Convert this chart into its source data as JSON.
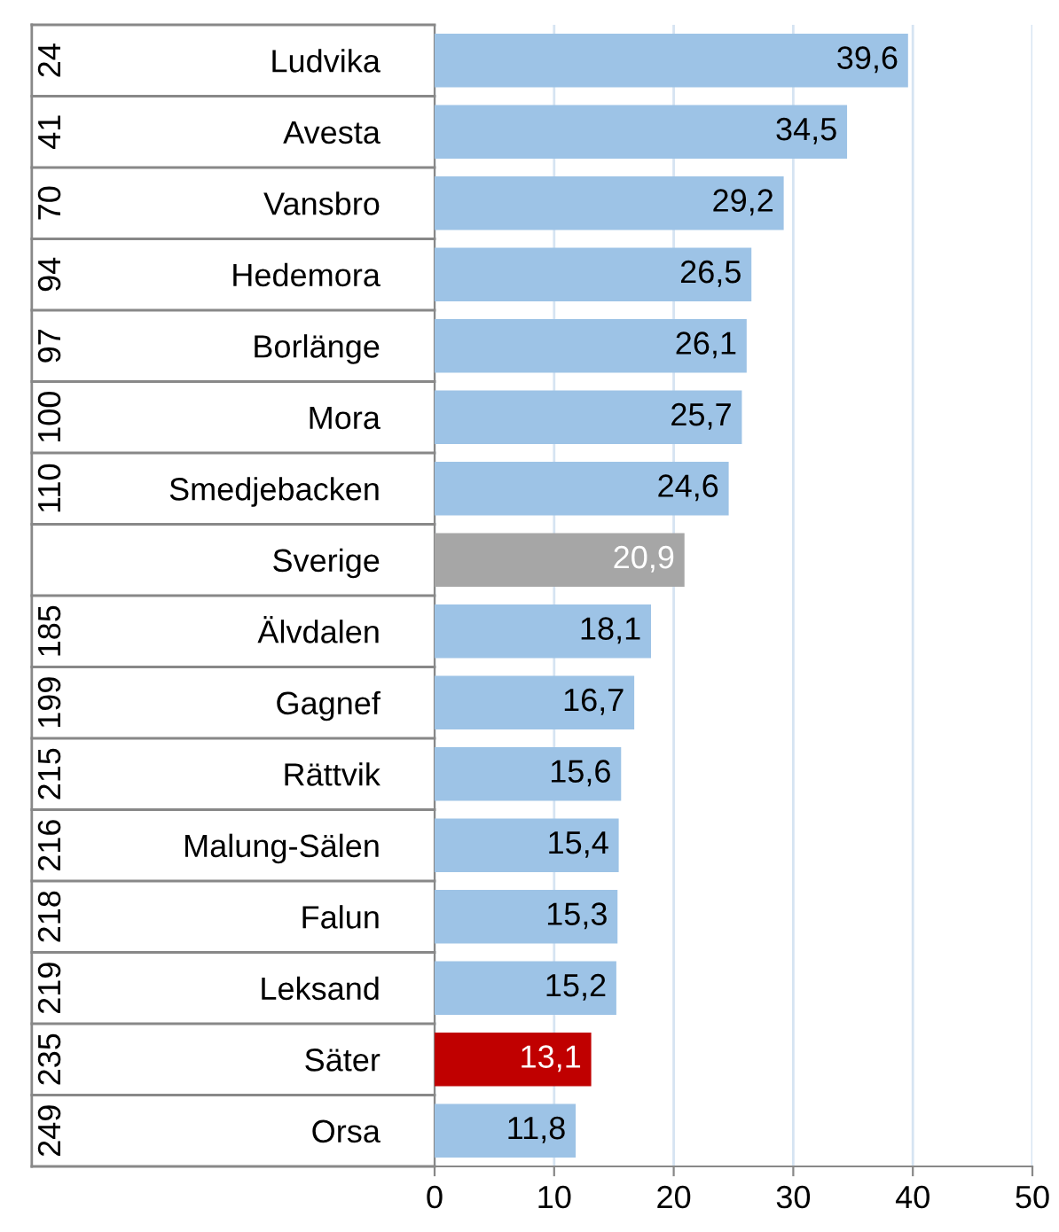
{
  "chart_data": {
    "type": "bar",
    "orientation": "horizontal",
    "categories": [
      "Ludvika",
      "Avesta",
      "Vansbro",
      "Hedemora",
      "Borlänge",
      "Mora",
      "Smedjebacken",
      "Sverige",
      "Älvdalen",
      "Gagnef",
      "Rättvik",
      "Malung-Sälen",
      "Falun",
      "Leksand",
      "Säter",
      "Orsa"
    ],
    "values": [
      39.6,
      34.5,
      29.2,
      26.5,
      26.1,
      25.7,
      24.6,
      20.9,
      18.1,
      16.7,
      15.6,
      15.4,
      15.3,
      15.2,
      13.1,
      11.8
    ],
    "colors": [
      "#9dc3e6",
      "#9dc3e6",
      "#9dc3e6",
      "#9dc3e6",
      "#9dc3e6",
      "#9dc3e6",
      "#9dc3e6",
      "#a6a6a6",
      "#9dc3e6",
      "#9dc3e6",
      "#9dc3e6",
      "#9dc3e6",
      "#9dc3e6",
      "#9dc3e6",
      "#c00000",
      "#9dc3e6"
    ],
    "value_labels": [
      "39,6",
      "34,5",
      "29,2",
      "26,5",
      "26,1",
      "25,7",
      "24,6",
      "20,9",
      "18,1",
      "16,7",
      "15,6",
      "15,4",
      "15,3",
      "15,2",
      "13,1",
      "11,8"
    ],
    "xlim": [
      0,
      50
    ],
    "xticks": [
      0,
      10,
      20,
      30,
      40,
      50
    ],
    "grid": "x",
    "annotations": [
      "24",
      "41",
      "70",
      "94",
      "97",
      "100",
      "110",
      null,
      "185",
      "199",
      "215",
      "216",
      "218",
      "219",
      "235",
      "249"
    ]
  }
}
